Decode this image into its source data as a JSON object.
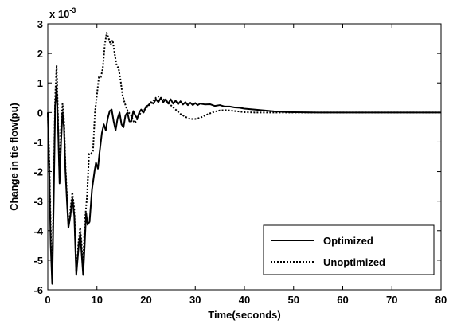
{
  "chart_data": {
    "type": "line",
    "xlabel": "Time(seconds)",
    "ylabel": "Change in tie flow(pu)",
    "scale_multiplier": {
      "base": "x 10",
      "exponent": "-3"
    },
    "xlim": [
      0,
      80
    ],
    "ylim": [
      -6,
      3
    ],
    "x_ticks": [
      0,
      10,
      20,
      30,
      40,
      50,
      60,
      70,
      80
    ],
    "y_ticks": [
      -6,
      -5,
      -4,
      -3,
      -2,
      -1,
      0,
      1,
      2,
      3
    ],
    "grid": false,
    "legend_position": "bottom-right",
    "series": [
      {
        "name": "Optimized",
        "line_style": "solid",
        "color": "#000000",
        "points": [
          [
            0,
            0
          ],
          [
            0.3,
            -2.0
          ],
          [
            0.6,
            -4.5
          ],
          [
            0.9,
            -5.8
          ],
          [
            1.2,
            -3.0
          ],
          [
            1.5,
            0.2
          ],
          [
            1.8,
            0.9
          ],
          [
            2.1,
            -0.5
          ],
          [
            2.4,
            -2.4
          ],
          [
            2.7,
            -1.0
          ],
          [
            3.0,
            0.0
          ],
          [
            3.3,
            -0.5
          ],
          [
            3.6,
            -2.0
          ],
          [
            3.9,
            -3.0
          ],
          [
            4.2,
            -3.9
          ],
          [
            4.6,
            -3.5
          ],
          [
            5.0,
            -2.9
          ],
          [
            5.4,
            -3.5
          ],
          [
            5.8,
            -5.5
          ],
          [
            6.3,
            -4.5
          ],
          [
            6.6,
            -4.1
          ],
          [
            6.9,
            -4.8
          ],
          [
            7.2,
            -5.5
          ],
          [
            7.5,
            -4.5
          ],
          [
            7.8,
            -3.4
          ],
          [
            8.1,
            -3.8
          ],
          [
            8.5,
            -3.7
          ],
          [
            9.0,
            -2.6
          ],
          [
            9.5,
            -2.0
          ],
          [
            9.8,
            -1.7
          ],
          [
            10.2,
            -1.9
          ],
          [
            10.5,
            -1.4
          ],
          [
            11.0,
            -0.7
          ],
          [
            11.4,
            -0.4
          ],
          [
            11.8,
            -0.6
          ],
          [
            12.2,
            -0.2
          ],
          [
            12.6,
            0.05
          ],
          [
            13.0,
            0.1
          ],
          [
            13.4,
            -0.3
          ],
          [
            13.8,
            -0.6
          ],
          [
            14.2,
            -0.2
          ],
          [
            14.6,
            0.0
          ],
          [
            15.0,
            -0.4
          ],
          [
            15.4,
            -0.5
          ],
          [
            15.8,
            -0.1
          ],
          [
            16.2,
            0.0
          ],
          [
            16.6,
            -0.3
          ],
          [
            17.0,
            -0.3
          ],
          [
            17.4,
            0.05
          ],
          [
            17.8,
            -0.1
          ],
          [
            18.2,
            -0.2
          ],
          [
            18.6,
            0.0
          ],
          [
            19.0,
            0.1
          ],
          [
            19.5,
            0.0
          ],
          [
            20.0,
            0.2
          ],
          [
            20.5,
            0.25
          ],
          [
            21.0,
            0.35
          ],
          [
            21.5,
            0.3
          ],
          [
            22.0,
            0.45
          ],
          [
            22.5,
            0.35
          ],
          [
            23.0,
            0.5
          ],
          [
            23.5,
            0.35
          ],
          [
            24.0,
            0.45
          ],
          [
            24.5,
            0.3
          ],
          [
            25.0,
            0.45
          ],
          [
            25.5,
            0.3
          ],
          [
            26.0,
            0.4
          ],
          [
            26.5,
            0.28
          ],
          [
            27.0,
            0.38
          ],
          [
            27.5,
            0.27
          ],
          [
            28.0,
            0.35
          ],
          [
            28.5,
            0.25
          ],
          [
            29.0,
            0.33
          ],
          [
            29.5,
            0.25
          ],
          [
            30.0,
            0.32
          ],
          [
            30.5,
            0.25
          ],
          [
            31.0,
            0.3
          ],
          [
            32.0,
            0.27
          ],
          [
            33.0,
            0.28
          ],
          [
            34.0,
            0.22
          ],
          [
            35.0,
            0.25
          ],
          [
            36.0,
            0.2
          ],
          [
            37.0,
            0.2
          ],
          [
            38.0,
            0.17
          ],
          [
            39.0,
            0.16
          ],
          [
            40.0,
            0.13
          ],
          [
            42.0,
            0.1
          ],
          [
            44.0,
            0.07
          ],
          [
            46.0,
            0.04
          ],
          [
            48.0,
            0.02
          ],
          [
            50.0,
            0.01
          ],
          [
            55.0,
            0.0
          ],
          [
            60.0,
            0.0
          ],
          [
            70.0,
            0.0
          ],
          [
            80.0,
            0.0
          ]
        ]
      },
      {
        "name": "Unoptimized",
        "line_style": "dotted",
        "color": "#000000",
        "points": [
          [
            0,
            0
          ],
          [
            0.3,
            -1.5
          ],
          [
            0.6,
            -4.0
          ],
          [
            0.9,
            -5.5
          ],
          [
            1.2,
            -2.5
          ],
          [
            1.5,
            0.5
          ],
          [
            1.8,
            1.6
          ],
          [
            2.1,
            -0.3
          ],
          [
            2.4,
            -2.2
          ],
          [
            2.7,
            -0.5
          ],
          [
            3.0,
            0.3
          ],
          [
            3.3,
            -0.2
          ],
          [
            3.6,
            -1.8
          ],
          [
            3.9,
            -2.8
          ],
          [
            4.2,
            -3.8
          ],
          [
            4.6,
            -3.3
          ],
          [
            5.0,
            -2.7
          ],
          [
            5.4,
            -3.3
          ],
          [
            5.8,
            -5.4
          ],
          [
            6.3,
            -4.3
          ],
          [
            6.6,
            -3.9
          ],
          [
            6.9,
            -4.5
          ],
          [
            7.2,
            -5.1
          ],
          [
            7.5,
            -3.8
          ],
          [
            7.8,
            -3.2
          ],
          [
            8.0,
            -2.8
          ],
          [
            8.4,
            -1.4
          ],
          [
            8.8,
            -1.4
          ],
          [
            9.2,
            -1.3
          ],
          [
            9.6,
            0.0
          ],
          [
            10.0,
            0.6
          ],
          [
            10.4,
            1.2
          ],
          [
            10.8,
            1.2
          ],
          [
            11.2,
            1.5
          ],
          [
            11.6,
            2.3
          ],
          [
            12.0,
            2.7
          ],
          [
            12.4,
            2.5
          ],
          [
            12.8,
            2.3
          ],
          [
            13.2,
            2.45
          ],
          [
            13.6,
            2.0
          ],
          [
            14.0,
            1.6
          ],
          [
            14.4,
            1.5
          ],
          [
            14.8,
            1.1
          ],
          [
            15.2,
            0.6
          ],
          [
            15.6,
            0.35
          ],
          [
            16.0,
            0.15
          ],
          [
            16.4,
            0.0
          ],
          [
            16.8,
            -0.05
          ],
          [
            17.2,
            -0.2
          ],
          [
            17.6,
            -0.35
          ],
          [
            18.0,
            -0.3
          ],
          [
            18.5,
            -0.1
          ],
          [
            19.0,
            0.0
          ],
          [
            20.0,
            0.15
          ],
          [
            21.0,
            0.3
          ],
          [
            22.0,
            0.5
          ],
          [
            22.5,
            0.55
          ],
          [
            23.0,
            0.5
          ],
          [
            24.0,
            0.4
          ],
          [
            25.0,
            0.25
          ],
          [
            26.0,
            0.1
          ],
          [
            27.0,
            -0.05
          ],
          [
            28.0,
            -0.15
          ],
          [
            29.0,
            -0.22
          ],
          [
            30.0,
            -0.22
          ],
          [
            31.0,
            -0.18
          ],
          [
            32.0,
            -0.1
          ],
          [
            33.0,
            -0.03
          ],
          [
            34.0,
            0.03
          ],
          [
            35.0,
            0.07
          ],
          [
            36.0,
            0.08
          ],
          [
            37.0,
            0.07
          ],
          [
            38.0,
            0.05
          ],
          [
            40.0,
            0.01
          ],
          [
            42.0,
            0.0
          ],
          [
            44.0,
            0.0
          ],
          [
            50.0,
            0.0
          ],
          [
            60.0,
            0.0
          ],
          [
            70.0,
            0.0
          ],
          [
            80.0,
            0.0
          ]
        ]
      }
    ]
  }
}
